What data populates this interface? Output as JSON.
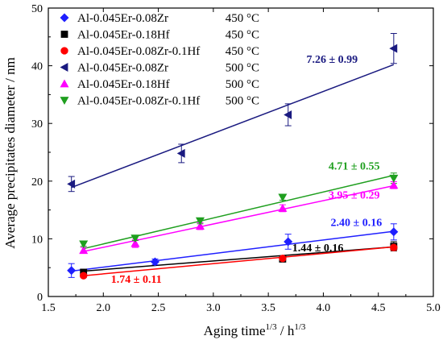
{
  "chart_data": {
    "type": "scatter",
    "title": "",
    "xlabel_main": "Aging time",
    "xlabel_sup1": "1/3",
    "xlabel_sep": " / h",
    "xlabel_sup2": "1/3",
    "ylabel": "Average precipitates diameter / nm",
    "xlim": [
      1.5,
      5.0
    ],
    "ylim": [
      0,
      50
    ],
    "xticks": [
      "1.5",
      "2.0",
      "2.5",
      "3.0",
      "3.5",
      "4.0",
      "4.5",
      "5.0"
    ],
    "yticks": [
      "0",
      "10",
      "20",
      "30",
      "40",
      "50"
    ],
    "grid": false,
    "legend_position": "top-left",
    "series": [
      {
        "name": "Al-0.045Er-0.08Zr",
        "temp": "450 °C",
        "color": "#1f1fff",
        "marker": "diamond",
        "points": [
          [
            1.71,
            4.5
          ],
          [
            2.47,
            6.0
          ],
          [
            3.68,
            9.5
          ],
          [
            4.64,
            11.2
          ]
        ],
        "errors": [
          1.2,
          0.5,
          1.3,
          1.4
        ],
        "fit": [
          [
            1.71,
            4.4
          ],
          [
            4.64,
            11.3
          ]
        ],
        "rate_label": "2.40 ± 0.16",
        "rate_xy": [
          4.3,
          12.2
        ]
      },
      {
        "name": "Al-0.045Er-0.18Hf",
        "temp": "450 °C",
        "color": "#000000",
        "marker": "square",
        "points": [
          [
            1.82,
            4.2
          ],
          [
            3.63,
            6.5
          ],
          [
            4.64,
            8.7
          ]
        ],
        "errors": [
          0.4,
          0.4,
          0.8
        ],
        "fit": [
          [
            1.82,
            4.4
          ],
          [
            4.64,
            8.6
          ]
        ],
        "rate_label": "1.44 ± 0.16",
        "rate_xy": [
          3.95,
          7.8
        ]
      },
      {
        "name": "Al-0.045Er-0.08Zr-0.1Hf",
        "temp": "450 °C",
        "color": "#ff0000",
        "marker": "circle",
        "points": [
          [
            1.82,
            3.6
          ],
          [
            3.63,
            6.6
          ],
          [
            4.64,
            8.5
          ]
        ],
        "errors": [
          0.3,
          0.4,
          0.5
        ],
        "fit": [
          [
            1.82,
            3.6
          ],
          [
            4.64,
            8.6
          ]
        ],
        "rate_label": "1.74 ± 0.11",
        "rate_xy": [
          2.3,
          2.4
        ]
      },
      {
        "name": "Al-0.045Er-0.08Zr",
        "temp": "500 °C",
        "color": "#1a1a80",
        "marker": "triangle-left",
        "points": [
          [
            1.71,
            19.5
          ],
          [
            2.71,
            24.8
          ],
          [
            3.68,
            31.5
          ],
          [
            4.64,
            43.0
          ]
        ],
        "errors": [
          1.3,
          1.6,
          1.9,
          2.6
        ],
        "fit": [
          [
            1.71,
            18.9
          ],
          [
            4.64,
            40.2
          ]
        ],
        "rate_label": "7.26 ± 0.99",
        "rate_xy": [
          4.08,
          40.5
        ]
      },
      {
        "name": "Al-0.045Er-0.18Hf",
        "temp": "500 °C",
        "color": "#ff00ff",
        "marker": "triangle-up",
        "points": [
          [
            1.82,
            8.0
          ],
          [
            2.29,
            9.2
          ],
          [
            2.88,
            12.2
          ],
          [
            3.63,
            15.3
          ],
          [
            4.64,
            19.3
          ]
        ],
        "errors": [
          0.5,
          0.7,
          0.6,
          0.6,
          0.6
        ],
        "fit": [
          [
            1.82,
            7.8
          ],
          [
            4.64,
            19.2
          ]
        ],
        "rate_label": "3.95 ± 0.29",
        "rate_xy": [
          4.28,
          17.0
        ]
      },
      {
        "name": "Al-0.045Er-0.08Zr-0.1Hf",
        "temp": "500 °C",
        "color": "#1f9f1f",
        "marker": "triangle-down",
        "points": [
          [
            1.82,
            9.1
          ],
          [
            2.29,
            10.1
          ],
          [
            2.88,
            13.1
          ],
          [
            3.63,
            17.2
          ],
          [
            4.64,
            20.5
          ]
        ],
        "errors": [
          0.4,
          0.4,
          0.5,
          0.5,
          0.9
        ],
        "fit": [
          [
            1.82,
            8.3
          ],
          [
            4.64,
            21.0
          ]
        ],
        "rate_label": "4.71 ± 0.55",
        "rate_xy": [
          4.28,
          22.0
        ]
      }
    ]
  }
}
